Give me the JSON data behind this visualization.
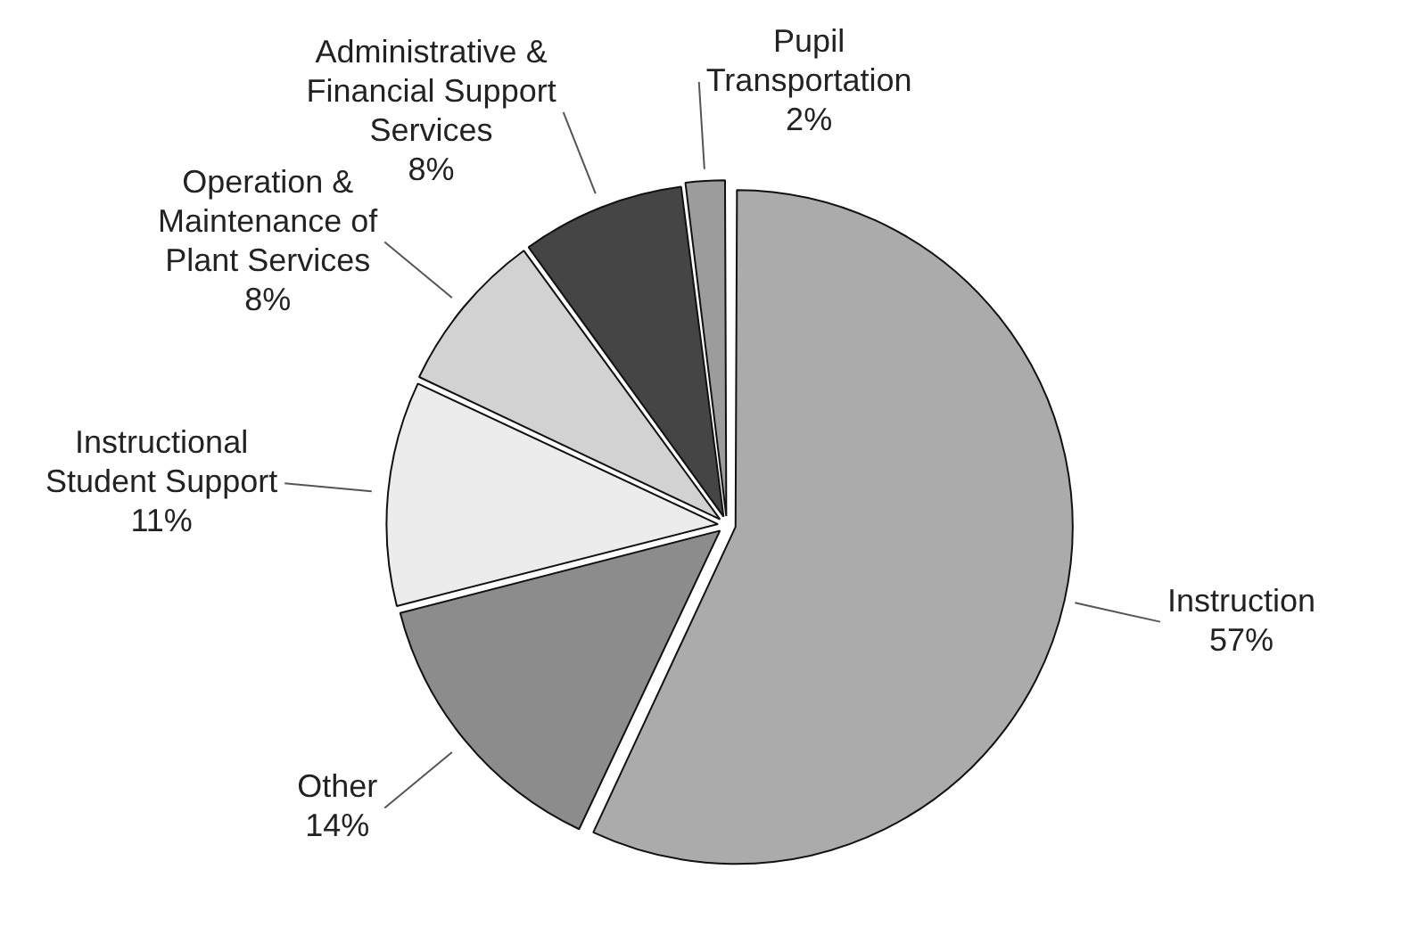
{
  "chart_data": {
    "type": "pie",
    "categories": [
      "Instruction",
      "Other",
      "Instructional Student Support",
      "Operation & Maintenance of Plant Services",
      "Administrative & Financial Support Services",
      "Pupil Transportation"
    ],
    "values": [
      57,
      14,
      11,
      8,
      8,
      2
    ],
    "value_labels": [
      "57%",
      "14%",
      "11%",
      "8%",
      "8%",
      "2%"
    ],
    "colors": [
      "#ababab",
      "#8c8c8c",
      "#ececec",
      "#d2d2d2",
      "#454545",
      "#9c9c9c"
    ],
    "legend": false
  }
}
